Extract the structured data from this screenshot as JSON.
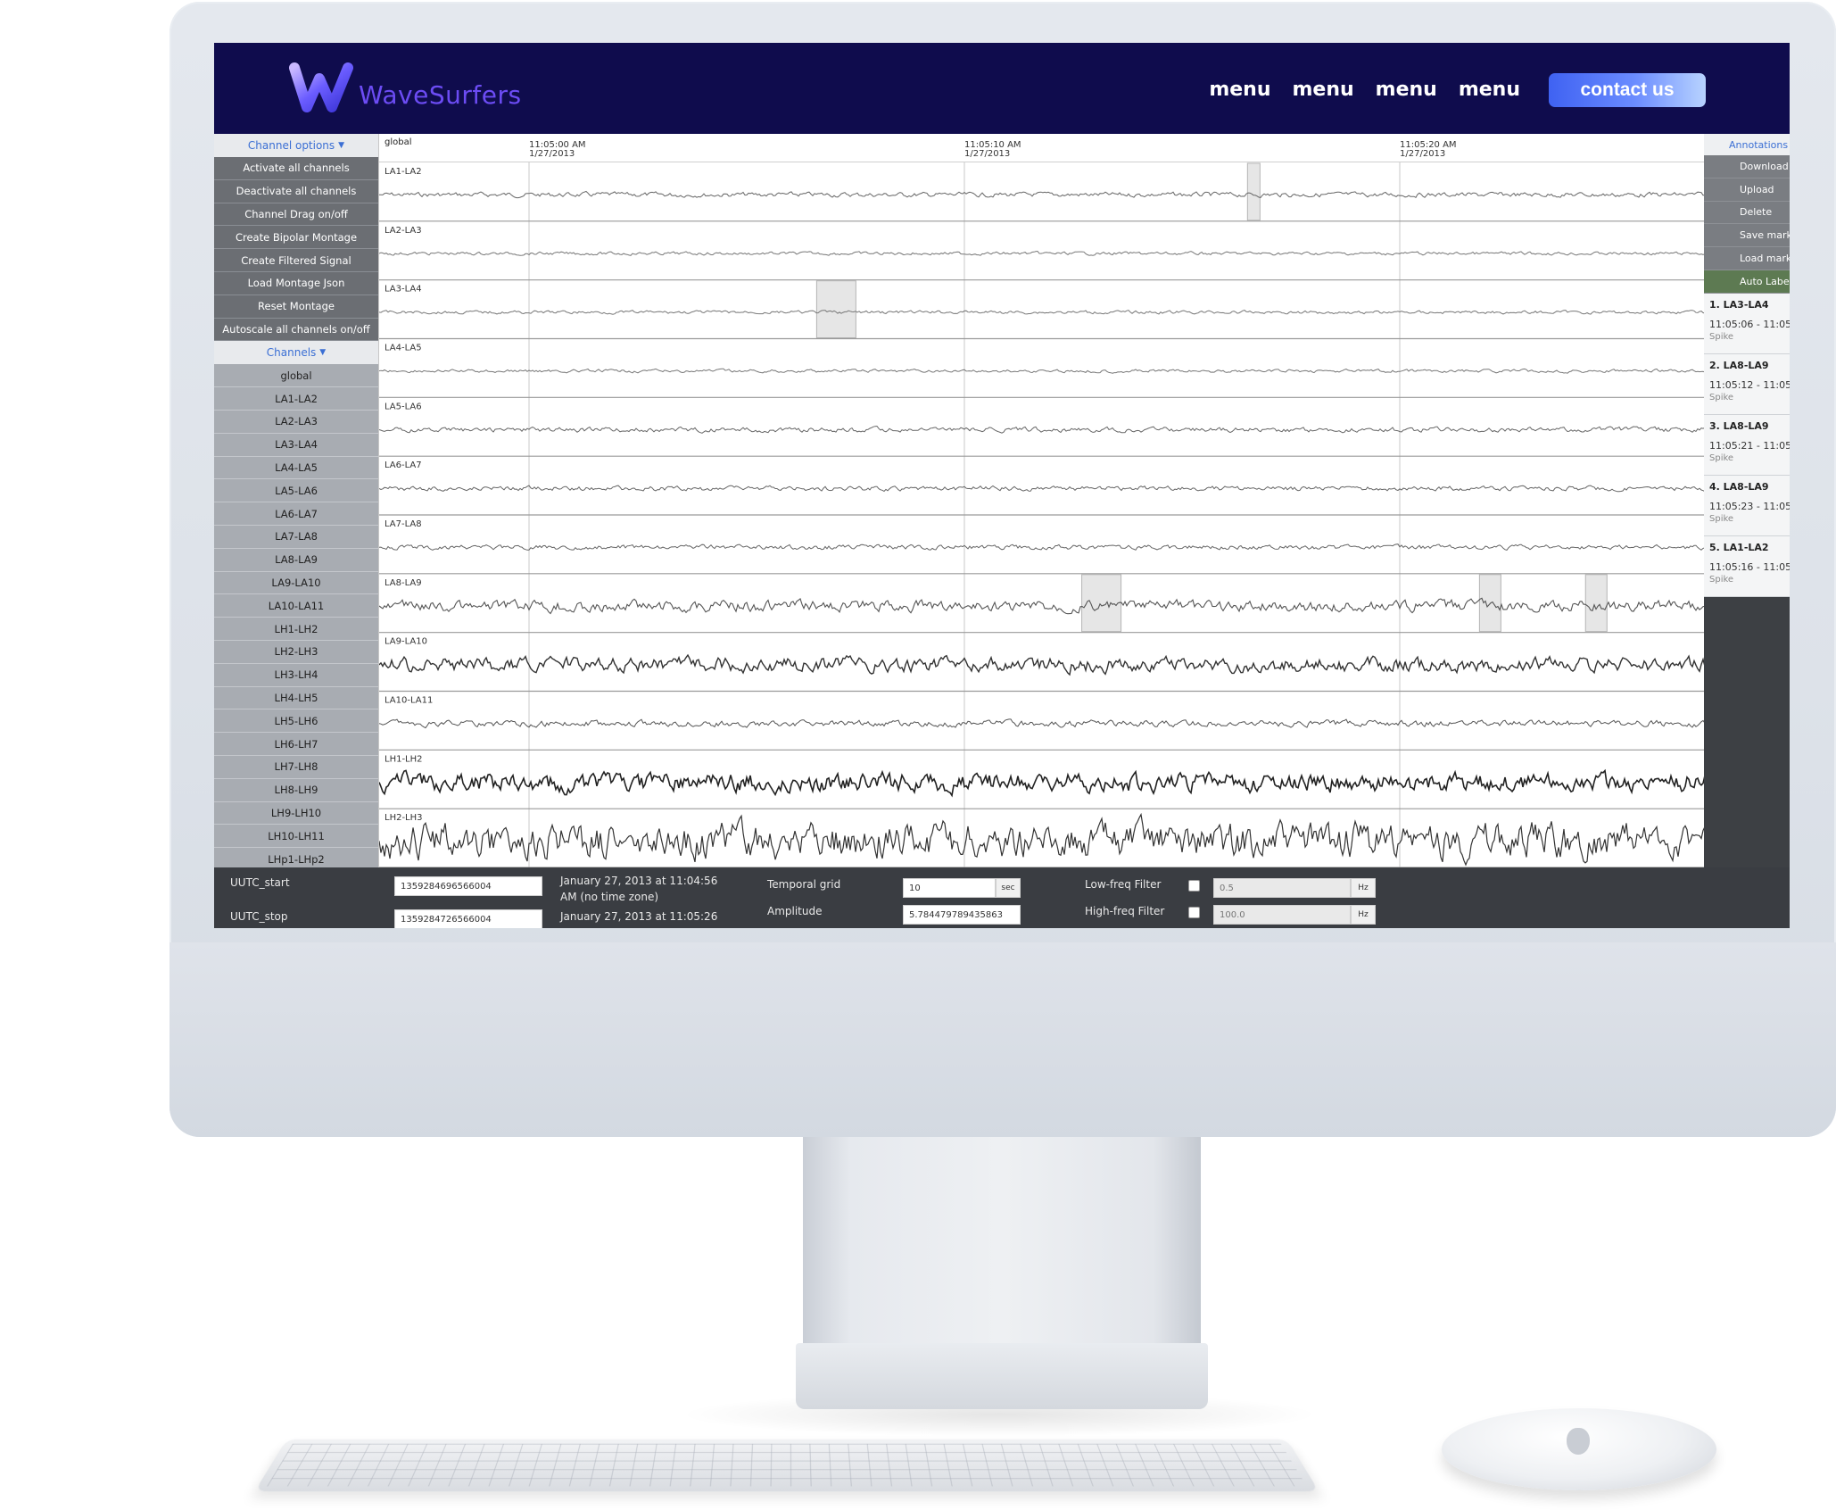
{
  "brand": {
    "name": "WaveSurfers"
  },
  "nav": {
    "links": [
      "menu",
      "menu",
      "menu",
      "menu"
    ],
    "contact_label": "contact us"
  },
  "sidebar": {
    "options_header": "Channel options",
    "options": [
      "Activate all channels",
      "Deactivate all channels",
      "Channel Drag on/off",
      "Create Bipolar Montage",
      "Create Filtered Signal",
      "Load Montage Json",
      "Reset Montage",
      "Autoscale all channels on/off"
    ],
    "channels_header": "Channels",
    "channels": [
      "global",
      "LA1-LA2",
      "LA2-LA3",
      "LA3-LA4",
      "LA4-LA5",
      "LA5-LA6",
      "LA6-LA7",
      "LA7-LA8",
      "LA8-LA9",
      "LA9-LA10",
      "LA10-LA11",
      "LH1-LH2",
      "LH2-LH3",
      "LH3-LH4",
      "LH4-LH5",
      "LH5-LH6",
      "LH6-LH7",
      "LH7-LH8",
      "LH8-LH9",
      "LH9-LH10",
      "LH10-LH11",
      "LHp1-LHp2"
    ]
  },
  "plot": {
    "axis_label": "global",
    "ticks": [
      {
        "time": "11:05:00 AM",
        "date": "1/27/2013"
      },
      {
        "time": "11:05:10 AM",
        "date": "1/27/2013"
      },
      {
        "time": "11:05:20 AM",
        "date": "1/27/2013"
      }
    ],
    "lanes": [
      {
        "label": "LA1-LA2",
        "amp": 3,
        "weight": 1.0,
        "color": "#666666",
        "highlights": [
          0.655
        ]
      },
      {
        "label": "LA2-LA3",
        "amp": 2,
        "weight": 1.0,
        "color": "#777777",
        "highlights": []
      },
      {
        "label": "LA3-LA4",
        "amp": 2,
        "weight": 1.0,
        "color": "#777777",
        "highlights": [
          0.33
        ]
      },
      {
        "label": "LA4-LA5",
        "amp": 2,
        "weight": 1.0,
        "color": "#777777",
        "highlights": []
      },
      {
        "label": "LA5-LA6",
        "amp": 3,
        "weight": 1.0,
        "color": "#666666",
        "highlights": []
      },
      {
        "label": "LA6-LA7",
        "amp": 3,
        "weight": 1.0,
        "color": "#666666",
        "highlights": []
      },
      {
        "label": "LA7-LA8",
        "amp": 3,
        "weight": 1.0,
        "color": "#666666",
        "highlights": []
      },
      {
        "label": "LA8-LA9",
        "amp": 7,
        "weight": 1.1,
        "color": "#555555",
        "highlights": [
          0.53,
          0.83,
          0.91
        ]
      },
      {
        "label": "LA9-LA10",
        "amp": 9,
        "weight": 1.4,
        "color": "#333333",
        "highlights": []
      },
      {
        "label": "LA10-LA11",
        "amp": 4,
        "weight": 1.0,
        "color": "#555555",
        "highlights": []
      },
      {
        "label": "LH1-LH2",
        "amp": 12,
        "weight": 1.6,
        "color": "#222222",
        "highlights": []
      },
      {
        "label": "LH2-LH3",
        "amp": 22,
        "weight": 1.2,
        "color": "#333333",
        "highlights": []
      }
    ]
  },
  "annotations": {
    "header": "Annotations",
    "buttons": [
      "Download",
      "Upload",
      "Delete",
      "Save markers",
      "Load markers",
      "Auto Label"
    ],
    "items": [
      {
        "title": "1. LA3-LA4",
        "time": "11:05:06 - 11:05",
        "type": "Spike"
      },
      {
        "title": "2. LA8-LA9",
        "time": "11:05:12 - 11:05",
        "type": "Spike"
      },
      {
        "title": "3. LA8-LA9",
        "time": "11:05:21 - 11:05",
        "type": "Spike"
      },
      {
        "title": "4. LA8-LA9",
        "time": "11:05:23 - 11:05",
        "type": "Spike"
      },
      {
        "title": "5. LA1-LA2",
        "time": "11:05:16 - 11:05",
        "type": "Spike"
      }
    ]
  },
  "controls": {
    "uutc_start_label": "UUTC_start",
    "uutc_start_value": "1359284696566004",
    "uutc_start_text_1": "January 27, 2013 at 11:04:56",
    "uutc_start_text_2": "AM (no time zone)",
    "uutc_stop_label": "UUTC_stop",
    "uutc_stop_value": "1359284726566004",
    "uutc_stop_text": "January 27, 2013 at 11:05:26",
    "temporal_grid_label": "Temporal grid",
    "temporal_grid_value": "10",
    "temporal_grid_unit": "sec",
    "amplitude_label": "Amplitude",
    "amplitude_value": "5.784479789435863",
    "low_freq_label": "Low-freq Filter",
    "low_freq_value": "0.5",
    "low_freq_unit": "Hz",
    "high_freq_label": "High-freq Filter",
    "high_freq_value": "100.0",
    "high_freq_unit": "Hz"
  },
  "colors": {
    "navbar": "#0f0c4d",
    "brand": "#6c4cf4",
    "accent": "#3f62f2"
  }
}
